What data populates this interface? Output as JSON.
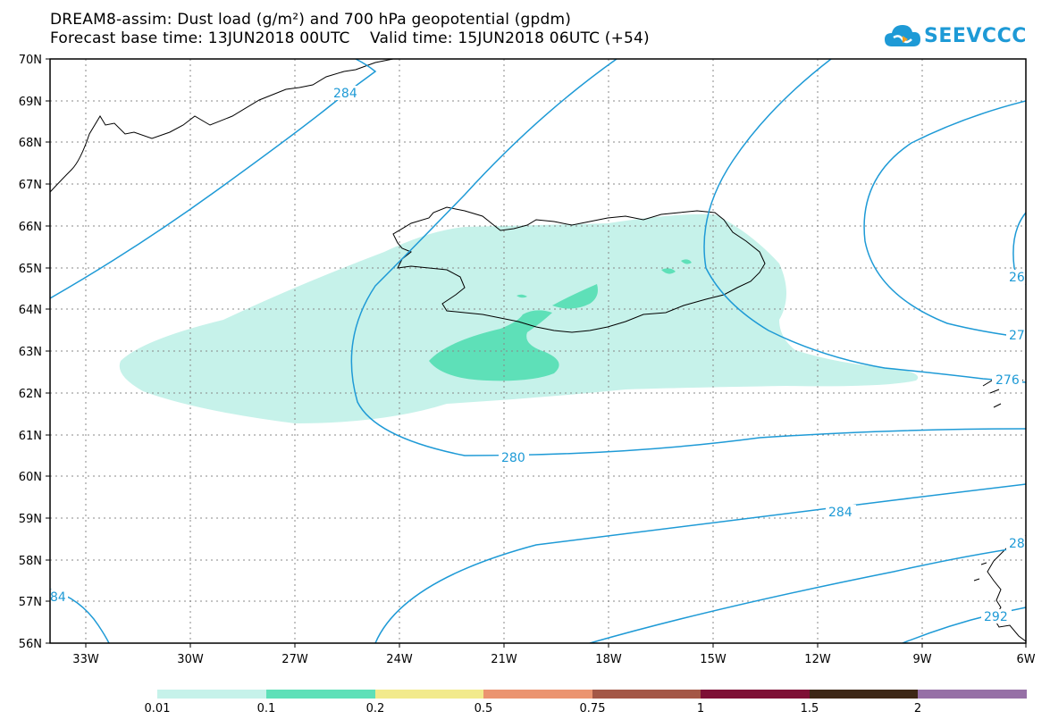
{
  "header": {
    "title_line1": "DREAM8-assim: Dust load (g/m²) and 700 hPa geopotential (gpdm)",
    "title_line2": "Forecast base time: 13JUN2018 00UTC    Valid time: 15JUN2018 06UTC (+54)"
  },
  "logo": {
    "text": "SEEVCCC",
    "color": "#1e9ad6"
  },
  "map": {
    "lat_labels": [
      "70N",
      "69N",
      "68N",
      "67N",
      "66N",
      "65N",
      "64N",
      "63N",
      "62N",
      "61N",
      "60N",
      "59N",
      "58N",
      "57N",
      "56N"
    ],
    "lon_labels": [
      "33W",
      "30W",
      "27W",
      "24W",
      "21W",
      "18W",
      "15W",
      "12W",
      "9W",
      "6W"
    ],
    "contour_labels": [
      "284",
      "280",
      "284",
      "276",
      "27",
      "26",
      "28",
      "292",
      "84"
    ],
    "contour_color": "#1e9ad6"
  },
  "legend": {
    "colors": [
      "#c6f2ea",
      "#5ee0b8",
      "#f2ea8c",
      "#eb9470",
      "#a45746",
      "#7e0f35",
      "#3d2716",
      "#9670a6"
    ],
    "labels": [
      "0.01",
      "0.1",
      "0.2",
      "0.5",
      "0.75",
      "1",
      "1.5",
      "2"
    ]
  }
}
